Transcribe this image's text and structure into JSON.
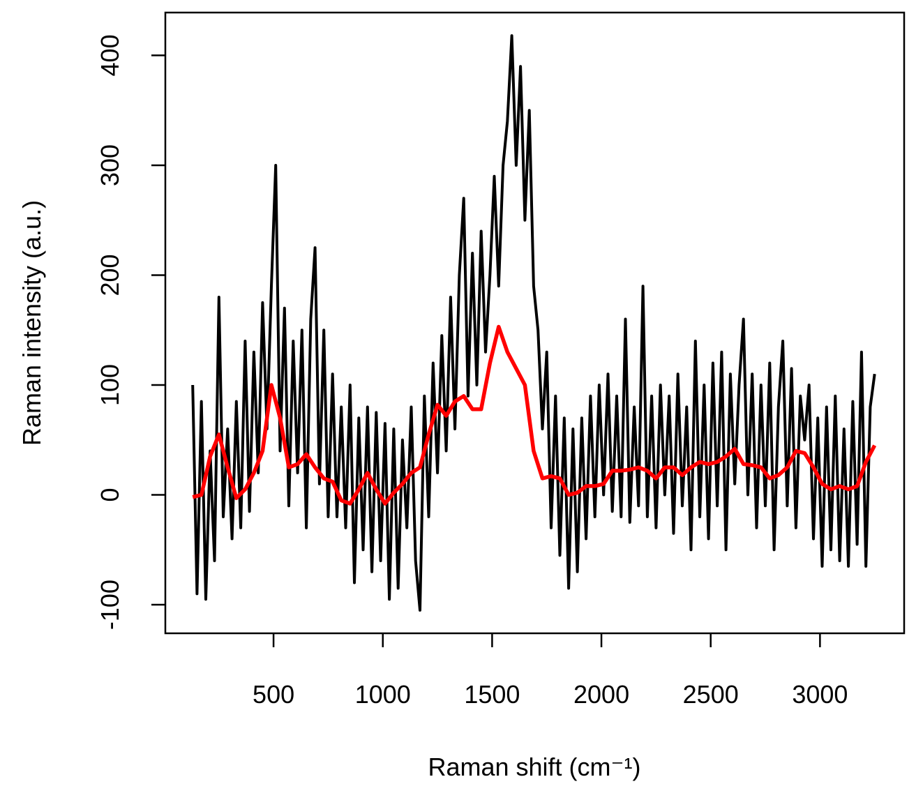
{
  "chart_data": {
    "type": "line",
    "xlabel": "Raman shift (cm⁻¹)",
    "ylabel": "Raman intensity (a.u.)",
    "xlim": [
      5,
      3385
    ],
    "xticks": [
      500,
      1000,
      1500,
      2000,
      2500,
      3000
    ],
    "ylim": [
      -126,
      439
    ],
    "yticks": [
      -100,
      0,
      100,
      200,
      300,
      400
    ],
    "series": [
      {
        "color": "#000000",
        "x": [
          130,
          150,
          170,
          190,
          210,
          230,
          250,
          270,
          290,
          310,
          330,
          350,
          370,
          390,
          410,
          430,
          450,
          470,
          490,
          510,
          530,
          550,
          570,
          590,
          610,
          630,
          650,
          670,
          690,
          710,
          730,
          750,
          770,
          790,
          810,
          830,
          850,
          870,
          890,
          910,
          930,
          950,
          970,
          990,
          1010,
          1030,
          1050,
          1070,
          1090,
          1110,
          1130,
          1150,
          1170,
          1190,
          1210,
          1230,
          1250,
          1270,
          1290,
          1310,
          1330,
          1350,
          1370,
          1390,
          1410,
          1430,
          1450,
          1470,
          1490,
          1510,
          1530,
          1550,
          1570,
          1590,
          1610,
          1630,
          1650,
          1670,
          1690,
          1710,
          1730,
          1750,
          1770,
          1790,
          1810,
          1830,
          1850,
          1870,
          1890,
          1910,
          1930,
          1950,
          1970,
          1990,
          2010,
          2030,
          2050,
          2070,
          2090,
          2110,
          2130,
          2150,
          2170,
          2190,
          2210,
          2230,
          2250,
          2270,
          2290,
          2310,
          2330,
          2350,
          2370,
          2390,
          2410,
          2430,
          2450,
          2470,
          2490,
          2510,
          2530,
          2550,
          2570,
          2590,
          2610,
          2630,
          2650,
          2670,
          2690,
          2710,
          2730,
          2750,
          2770,
          2790,
          2810,
          2830,
          2850,
          2870,
          2890,
          2910,
          2930,
          2950,
          2970,
          2990,
          3010,
          3030,
          3050,
          3070,
          3090,
          3110,
          3130,
          3150,
          3170,
          3190,
          3210,
          3230,
          3250
        ],
        "values": [
          100,
          -90,
          85,
          -95,
          40,
          -60,
          180,
          -20,
          60,
          -40,
          85,
          -30,
          140,
          -15,
          130,
          20,
          175,
          60,
          190,
          300,
          40,
          170,
          -10,
          140,
          20,
          150,
          -30,
          160,
          225,
          10,
          150,
          -20,
          110,
          -20,
          80,
          -30,
          100,
          -80,
          70,
          -50,
          80,
          -70,
          75,
          -60,
          65,
          -95,
          60,
          -85,
          50,
          -30,
          80,
          -60,
          -105,
          90,
          -20,
          120,
          20,
          145,
          40,
          180,
          60,
          200,
          270,
          90,
          220,
          100,
          240,
          130,
          200,
          290,
          190,
          300,
          340,
          418,
          300,
          390,
          250,
          350,
          190,
          150,
          60,
          130,
          -30,
          90,
          -55,
          70,
          -85,
          60,
          -70,
          70,
          -40,
          90,
          -20,
          100,
          0,
          110,
          -15,
          90,
          -20,
          160,
          -25,
          80,
          -10,
          190,
          -20,
          90,
          -30,
          100,
          0,
          90,
          -35,
          110,
          -10,
          80,
          -50,
          140,
          -20,
          100,
          -40,
          120,
          -10,
          130,
          -50,
          110,
          10,
          100,
          160,
          0,
          110,
          -30,
          100,
          -10,
          120,
          -50,
          80,
          140,
          -10,
          115,
          -30,
          90,
          50,
          100,
          -40,
          70,
          -65,
          80,
          -50,
          90,
          -60,
          60,
          -65,
          85,
          -45,
          130,
          -65,
          80,
          110
        ]
      },
      {
        "color": "#ff0000",
        "x": [
          130,
          170,
          210,
          250,
          290,
          330,
          370,
          410,
          450,
          490,
          530,
          570,
          610,
          650,
          690,
          730,
          770,
          810,
          850,
          890,
          930,
          970,
          1010,
          1050,
          1090,
          1130,
          1170,
          1210,
          1250,
          1290,
          1330,
          1370,
          1410,
          1450,
          1490,
          1530,
          1570,
          1610,
          1650,
          1690,
          1730,
          1770,
          1810,
          1850,
          1890,
          1930,
          1970,
          2010,
          2050,
          2090,
          2130,
          2170,
          2210,
          2250,
          2290,
          2330,
          2370,
          2410,
          2450,
          2490,
          2530,
          2570,
          2610,
          2650,
          2690,
          2730,
          2770,
          2810,
          2850,
          2890,
          2930,
          2970,
          3010,
          3050,
          3090,
          3130,
          3170,
          3210,
          3250
        ],
        "values": [
          -2,
          0,
          35,
          55,
          25,
          -3,
          5,
          20,
          40,
          100,
          70,
          25,
          28,
          37,
          25,
          15,
          12,
          -5,
          -8,
          5,
          20,
          5,
          -8,
          2,
          10,
          20,
          25,
          55,
          82,
          72,
          85,
          90,
          78,
          78,
          120,
          153,
          130,
          115,
          100,
          40,
          15,
          17,
          15,
          0,
          2,
          8,
          8,
          10,
          22,
          22,
          23,
          25,
          22,
          15,
          25,
          25,
          18,
          25,
          30,
          28,
          30,
          35,
          42,
          28,
          27,
          25,
          15,
          18,
          25,
          40,
          38,
          25,
          10,
          5,
          8,
          5,
          8,
          30,
          45
        ]
      }
    ]
  }
}
